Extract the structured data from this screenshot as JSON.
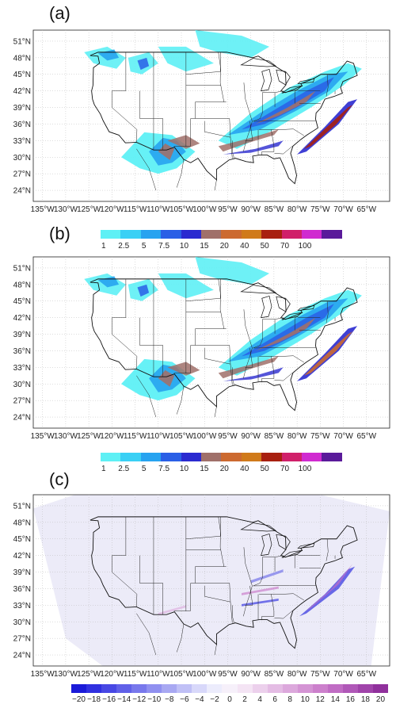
{
  "panels": [
    {
      "label": "(a)"
    },
    {
      "label": "(b)"
    },
    {
      "label": "(c)"
    }
  ],
  "lat_ticks": [
    "51°N",
    "48°N",
    "45°N",
    "42°N",
    "39°N",
    "36°N",
    "33°N",
    "30°N",
    "27°N",
    "24°N"
  ],
  "lon_ticks": [
    "135°W",
    "130°W",
    "125°W",
    "120°W",
    "115°W",
    "110°W",
    "105°W",
    "100°W",
    "95°W",
    "90°W",
    "85°W",
    "80°W",
    "75°W",
    "70°W",
    "65°W"
  ],
  "colorbar_precip": {
    "labels": [
      "1",
      "2.5",
      "5",
      "7.5",
      "10",
      "15",
      "20",
      "40",
      "50",
      "70",
      "100"
    ],
    "colors": [
      "#5ef0f5",
      "#3ad0f5",
      "#27a3f0",
      "#2a5fe6",
      "#2a2ad0",
      "#a0706a",
      "#cc6a30",
      "#d07a1a",
      "#a82010",
      "#d0206a",
      "#d02ad0",
      "#5a1a9a"
    ]
  },
  "colorbar_diff": {
    "labels": [
      "−20",
      "−18",
      "−16",
      "−14",
      "−12",
      "−10",
      "−8",
      "−6",
      "−4",
      "−2",
      "0",
      "2",
      "4",
      "6",
      "8",
      "10",
      "12",
      "14",
      "16",
      "18",
      "20"
    ],
    "colors": [
      "#1a1ad8",
      "#3030e0",
      "#4848e4",
      "#6060e8",
      "#7878ec",
      "#9090f0",
      "#a8a8f2",
      "#c0c0f6",
      "#d8d8fa",
      "#ececfc",
      "#f6f0fa",
      "#f4e4f4",
      "#ecd0ec",
      "#e4bce4",
      "#dca8dc",
      "#d494d4",
      "#cc80cc",
      "#c06cc4",
      "#b058b8",
      "#a044aa",
      "#90309c"
    ]
  }
}
